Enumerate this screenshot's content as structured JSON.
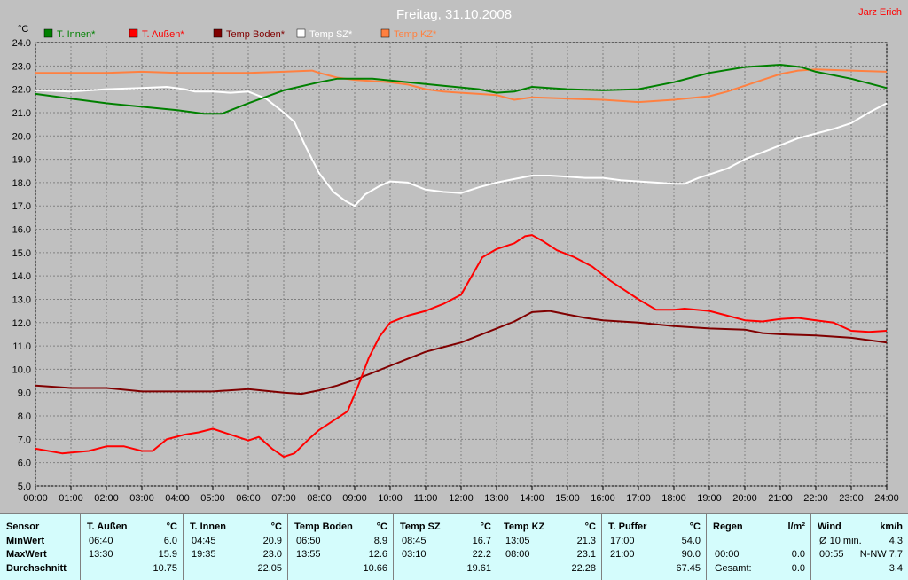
{
  "chart_data": {
    "type": "line",
    "title": "Freitag, 31.10.2008",
    "author": "Jarz Erich",
    "ylabel": "°C",
    "xlabel": "",
    "ylim": [
      5.0,
      24.0
    ],
    "xlim": [
      0,
      24
    ],
    "grid": true,
    "legend_position": "top-left",
    "yticks": [
      "5.0",
      "6.0",
      "7.0",
      "8.0",
      "9.0",
      "10.0",
      "11.0",
      "12.0",
      "13.0",
      "14.0",
      "15.0",
      "16.0",
      "17.0",
      "18.0",
      "19.0",
      "20.0",
      "21.0",
      "22.0",
      "23.0",
      "24.0"
    ],
    "xticks": [
      "00:00",
      "01:00",
      "02:00",
      "03:00",
      "04:00",
      "05:00",
      "06:00",
      "07:00",
      "08:00",
      "09:00",
      "10:00",
      "11:00",
      "12:00",
      "13:00",
      "14:00",
      "15:00",
      "16:00",
      "17:00",
      "18:00",
      "19:00",
      "20:00",
      "21:00",
      "22:00",
      "23:00",
      "24:00"
    ],
    "series": [
      {
        "name": "T. Innen*",
        "color": "#008000",
        "points": [
          [
            0,
            21.8
          ],
          [
            1,
            21.6
          ],
          [
            2,
            21.4
          ],
          [
            3,
            21.25
          ],
          [
            4,
            21.1
          ],
          [
            4.75,
            20.95
          ],
          [
            5.25,
            20.95
          ],
          [
            6,
            21.4
          ],
          [
            7,
            21.95
          ],
          [
            8,
            22.3
          ],
          [
            8.5,
            22.45
          ],
          [
            9.5,
            22.45
          ],
          [
            10.5,
            22.3
          ],
          [
            11.5,
            22.15
          ],
          [
            12.5,
            22.0
          ],
          [
            13,
            21.85
          ],
          [
            13.5,
            21.9
          ],
          [
            14,
            22.1
          ],
          [
            15,
            22.0
          ],
          [
            16,
            21.95
          ],
          [
            17,
            22.0
          ],
          [
            18,
            22.3
          ],
          [
            19,
            22.7
          ],
          [
            20,
            22.95
          ],
          [
            21,
            23.05
          ],
          [
            21.58,
            22.95
          ],
          [
            22,
            22.75
          ],
          [
            23,
            22.45
          ],
          [
            24,
            22.05
          ]
        ]
      },
      {
        "name": "T. Außen*",
        "color": "#ff0000",
        "points": [
          [
            0,
            6.6
          ],
          [
            0.75,
            6.4
          ],
          [
            1.5,
            6.5
          ],
          [
            2,
            6.7
          ],
          [
            2.5,
            6.7
          ],
          [
            3,
            6.5
          ],
          [
            3.3,
            6.5
          ],
          [
            3.7,
            7.0
          ],
          [
            4.2,
            7.2
          ],
          [
            4.6,
            7.3
          ],
          [
            5,
            7.45
          ],
          [
            5.5,
            7.2
          ],
          [
            6,
            6.95
          ],
          [
            6.3,
            7.1
          ],
          [
            6.67,
            6.6
          ],
          [
            7,
            6.25
          ],
          [
            7.3,
            6.4
          ],
          [
            7.7,
            7.0
          ],
          [
            8,
            7.4
          ],
          [
            8.5,
            7.9
          ],
          [
            8.8,
            8.2
          ],
          [
            9.1,
            9.3
          ],
          [
            9.4,
            10.5
          ],
          [
            9.7,
            11.4
          ],
          [
            10,
            12.0
          ],
          [
            10.5,
            12.3
          ],
          [
            11,
            12.5
          ],
          [
            11.5,
            12.8
          ],
          [
            12,
            13.2
          ],
          [
            12.3,
            14.0
          ],
          [
            12.6,
            14.8
          ],
          [
            13,
            15.15
          ],
          [
            13.5,
            15.4
          ],
          [
            13.8,
            15.7
          ],
          [
            14,
            15.75
          ],
          [
            14.3,
            15.5
          ],
          [
            14.7,
            15.1
          ],
          [
            15.2,
            14.8
          ],
          [
            15.7,
            14.4
          ],
          [
            16.2,
            13.8
          ],
          [
            16.7,
            13.3
          ],
          [
            17,
            13.0
          ],
          [
            17.5,
            12.55
          ],
          [
            18,
            12.55
          ],
          [
            18.3,
            12.6
          ],
          [
            19,
            12.5
          ],
          [
            19.5,
            12.3
          ],
          [
            20,
            12.1
          ],
          [
            20.5,
            12.05
          ],
          [
            21,
            12.15
          ],
          [
            21.5,
            12.2
          ],
          [
            22,
            12.1
          ],
          [
            22.5,
            12.0
          ],
          [
            23,
            11.65
          ],
          [
            23.5,
            11.6
          ],
          [
            24,
            11.65
          ]
        ]
      },
      {
        "name": "Temp Boden*",
        "color": "#800000",
        "points": [
          [
            0,
            9.3
          ],
          [
            1,
            9.2
          ],
          [
            2,
            9.2
          ],
          [
            3,
            9.05
          ],
          [
            4,
            9.05
          ],
          [
            5,
            9.05
          ],
          [
            6,
            9.15
          ],
          [
            7,
            9.0
          ],
          [
            7.5,
            8.95
          ],
          [
            8,
            9.1
          ],
          [
            8.5,
            9.3
          ],
          [
            9,
            9.55
          ],
          [
            9.5,
            9.85
          ],
          [
            10,
            10.15
          ],
          [
            10.5,
            10.45
          ],
          [
            11,
            10.75
          ],
          [
            11.5,
            10.95
          ],
          [
            12,
            11.15
          ],
          [
            12.5,
            11.45
          ],
          [
            13,
            11.75
          ],
          [
            13.5,
            12.05
          ],
          [
            14,
            12.45
          ],
          [
            14.5,
            12.5
          ],
          [
            15,
            12.35
          ],
          [
            15.5,
            12.2
          ],
          [
            16,
            12.1
          ],
          [
            17,
            12.0
          ],
          [
            18,
            11.85
          ],
          [
            19,
            11.75
          ],
          [
            20,
            11.7
          ],
          [
            20.5,
            11.55
          ],
          [
            21,
            11.5
          ],
          [
            22,
            11.45
          ],
          [
            23,
            11.35
          ],
          [
            24,
            11.15
          ]
        ]
      },
      {
        "name": "Temp SZ*",
        "color": "#ffffff",
        "points": [
          [
            0,
            21.95
          ],
          [
            1,
            21.9
          ],
          [
            2,
            22.0
          ],
          [
            3,
            22.05
          ],
          [
            3.7,
            22.1
          ],
          [
            4.2,
            22.0
          ],
          [
            4.5,
            21.9
          ],
          [
            5,
            21.9
          ],
          [
            5.5,
            21.85
          ],
          [
            6,
            21.9
          ],
          [
            6.5,
            21.6
          ],
          [
            7,
            21.0
          ],
          [
            7.3,
            20.6
          ],
          [
            7.6,
            19.6
          ],
          [
            8,
            18.4
          ],
          [
            8.4,
            17.6
          ],
          [
            8.75,
            17.2
          ],
          [
            9,
            17.0
          ],
          [
            9.3,
            17.5
          ],
          [
            9.7,
            17.85
          ],
          [
            10,
            18.05
          ],
          [
            10.5,
            18.0
          ],
          [
            11,
            17.7
          ],
          [
            11.5,
            17.6
          ],
          [
            12,
            17.55
          ],
          [
            12.5,
            17.8
          ],
          [
            13,
            18.0
          ],
          [
            13.5,
            18.15
          ],
          [
            14,
            18.3
          ],
          [
            14.5,
            18.3
          ],
          [
            15,
            18.25
          ],
          [
            15.5,
            18.2
          ],
          [
            16,
            18.2
          ],
          [
            16.5,
            18.1
          ],
          [
            17,
            18.05
          ],
          [
            17.5,
            18.0
          ],
          [
            18,
            17.95
          ],
          [
            18.3,
            17.95
          ],
          [
            18.7,
            18.2
          ],
          [
            19,
            18.35
          ],
          [
            19.5,
            18.6
          ],
          [
            20,
            19.0
          ],
          [
            20.5,
            19.3
          ],
          [
            21,
            19.6
          ],
          [
            21.5,
            19.9
          ],
          [
            22,
            20.1
          ],
          [
            22.5,
            20.3
          ],
          [
            23,
            20.55
          ],
          [
            23.5,
            21.0
          ],
          [
            24,
            21.4
          ]
        ]
      },
      {
        "name": "Temp KZ*",
        "color": "#ff8040",
        "points": [
          [
            0,
            22.7
          ],
          [
            1,
            22.7
          ],
          [
            2,
            22.7
          ],
          [
            3,
            22.75
          ],
          [
            4,
            22.7
          ],
          [
            5,
            22.7
          ],
          [
            6,
            22.7
          ],
          [
            7,
            22.75
          ],
          [
            7.8,
            22.8
          ],
          [
            8,
            22.7
          ],
          [
            8.5,
            22.5
          ],
          [
            9,
            22.4
          ],
          [
            10,
            22.3
          ],
          [
            10.5,
            22.2
          ],
          [
            11,
            22.0
          ],
          [
            11.5,
            21.9
          ],
          [
            12,
            21.85
          ],
          [
            12.5,
            21.8
          ],
          [
            13,
            21.75
          ],
          [
            13.5,
            21.55
          ],
          [
            14,
            21.65
          ],
          [
            15,
            21.6
          ],
          [
            16,
            21.55
          ],
          [
            17,
            21.45
          ],
          [
            18,
            21.55
          ],
          [
            19,
            21.7
          ],
          [
            19.5,
            21.9
          ],
          [
            20,
            22.15
          ],
          [
            20.5,
            22.4
          ],
          [
            21,
            22.65
          ],
          [
            21.5,
            22.8
          ],
          [
            22,
            22.85
          ],
          [
            23,
            22.8
          ],
          [
            24,
            22.75
          ]
        ]
      }
    ]
  },
  "table": {
    "columns": [
      {
        "header": "Sensor",
        "unit": "",
        "rows": [
          {
            "time": "MinWert",
            "value": ""
          },
          {
            "time": "MaxWert",
            "value": ""
          },
          {
            "time": "Durchschnitt",
            "value": ""
          }
        ]
      },
      {
        "header": "T. Außen",
        "unit": "°C",
        "rows": [
          {
            "time": "06:40",
            "value": "6.0"
          },
          {
            "time": "13:30",
            "value": "15.9"
          },
          {
            "time": "",
            "value": "10.75"
          }
        ]
      },
      {
        "header": "T. Innen",
        "unit": "°C",
        "rows": [
          {
            "time": "04:45",
            "value": "20.9"
          },
          {
            "time": "19:35",
            "value": "23.0"
          },
          {
            "time": "",
            "value": "22.05"
          }
        ]
      },
      {
        "header": "Temp Boden",
        "unit": "°C",
        "rows": [
          {
            "time": "06:50",
            "value": "8.9"
          },
          {
            "time": "13:55",
            "value": "12.6"
          },
          {
            "time": "",
            "value": "10.66"
          }
        ]
      },
      {
        "header": "Temp SZ",
        "unit": "°C",
        "rows": [
          {
            "time": "08:45",
            "value": "16.7"
          },
          {
            "time": "03:10",
            "value": "22.2"
          },
          {
            "time": "",
            "value": "19.61"
          }
        ]
      },
      {
        "header": "Temp KZ",
        "unit": "°C",
        "rows": [
          {
            "time": "13:05",
            "value": "21.3"
          },
          {
            "time": "08:00",
            "value": "23.1"
          },
          {
            "time": "",
            "value": "22.28"
          }
        ]
      },
      {
        "header": "T. Puffer",
        "unit": "°C",
        "rows": [
          {
            "time": "17:00",
            "value": "54.0"
          },
          {
            "time": "21:00",
            "value": "90.0"
          },
          {
            "time": "",
            "value": "67.45"
          }
        ]
      },
      {
        "header": "Regen",
        "unit": "l/m²",
        "rows": [
          {
            "time": "",
            "value": ""
          },
          {
            "time": "00:00",
            "value": "0.0"
          },
          {
            "time": "Gesamt:",
            "value": "0.0"
          }
        ]
      },
      {
        "header": "Wind",
        "unit": "km/h",
        "rows": [
          {
            "time": "Ø 10 min.",
            "value": "4.3"
          },
          {
            "time": "00:55",
            "value": "N-NW 7.7"
          },
          {
            "time": "",
            "value": "3.4"
          }
        ]
      }
    ]
  }
}
